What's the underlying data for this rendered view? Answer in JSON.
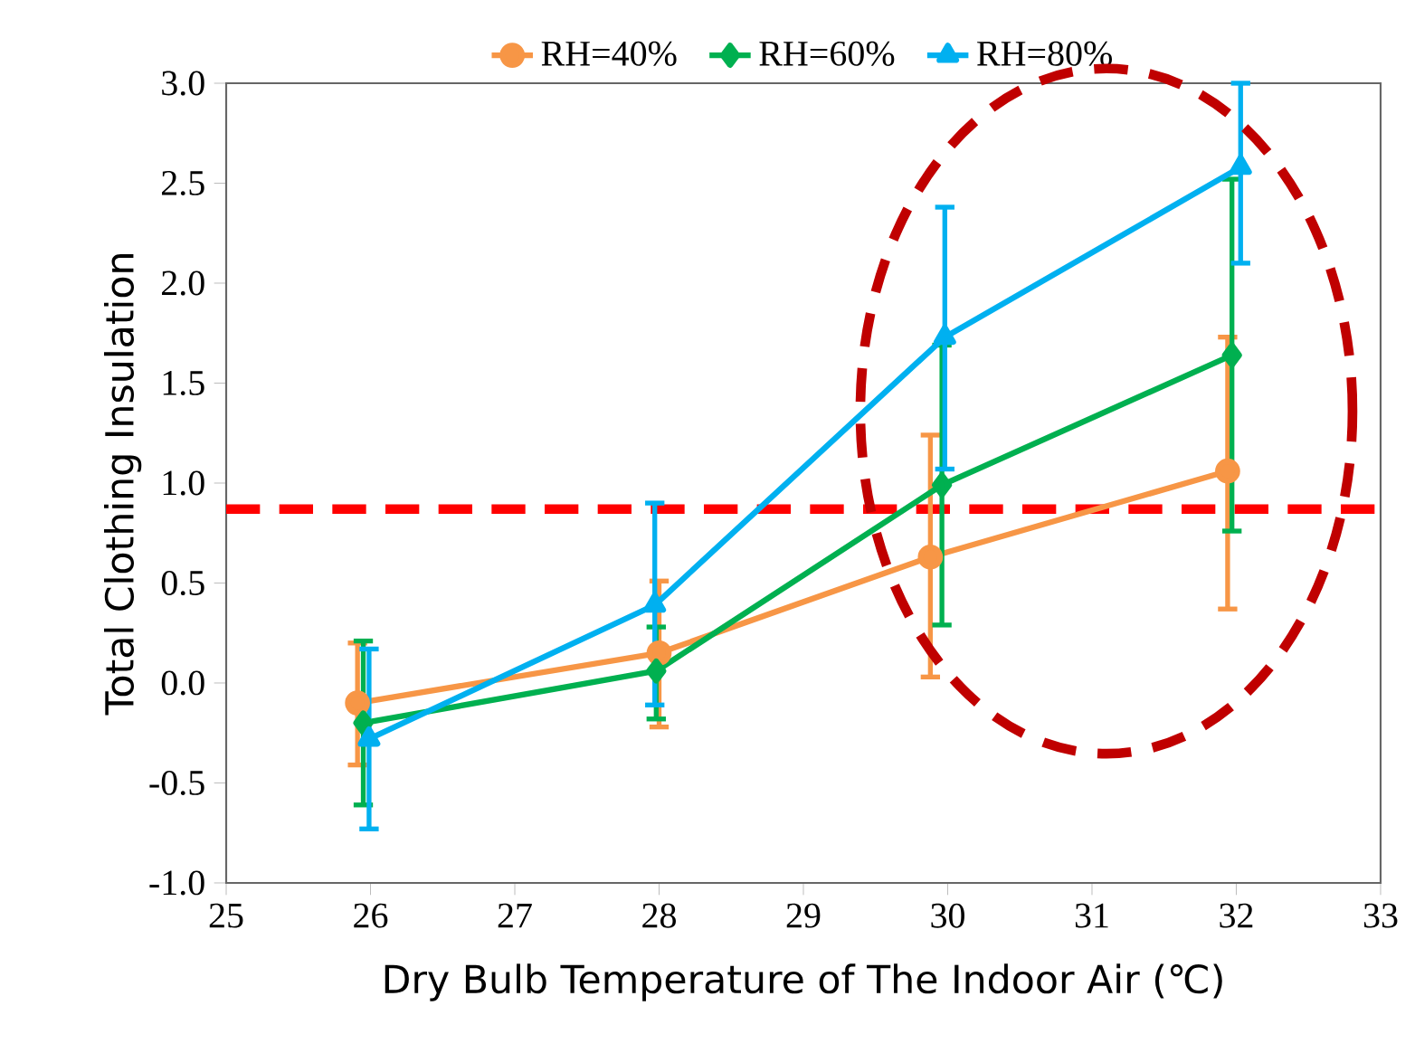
{
  "chart_data": {
    "type": "line",
    "xlabel": "Dry Bulb Temperature of The Indoor Air (℃)",
    "ylabel": "Total Clothing Insulation",
    "xlim": [
      25,
      33
    ],
    "xticks": [
      25,
      26,
      27,
      28,
      29,
      30,
      31,
      32,
      33
    ],
    "ylim": [
      -1.0,
      3.0
    ],
    "yticks": [
      {
        "value": -1.0,
        "label": "-1.0"
      },
      {
        "value": -0.5,
        "label": "-0.5"
      },
      {
        "value": 0,
        "label": "0.0"
      },
      {
        "value": 0.5,
        "label": "0.5"
      },
      {
        "value": 1.0,
        "label": "1.0"
      },
      {
        "value": 1.5,
        "label": "1.5"
      },
      {
        "value": 2.0,
        "label": "2.0"
      },
      {
        "value": 2.5,
        "label": "2.5"
      },
      {
        "value": 3.0,
        "label": "3.0"
      }
    ],
    "grid": false,
    "legend": "top",
    "line_style": "solid",
    "series": [
      {
        "name": "RH=40%",
        "color": "#f79646",
        "marker": "circle",
        "x": [
          25.91,
          28.0,
          29.88,
          31.94
        ],
        "values": [
          -0.1,
          0.15,
          0.63,
          1.06
        ],
        "errors": [
          [
            -0.41,
            0.2
          ],
          [
            -0.22,
            0.51
          ],
          [
            0.03,
            1.24
          ],
          [
            0.37,
            1.73
          ]
        ]
      },
      {
        "name": "RH=60%",
        "color": "#00b050",
        "marker": "diamond",
        "x": [
          25.95,
          27.98,
          29.96,
          31.97
        ],
        "values": [
          -0.2,
          0.06,
          0.99,
          1.64
        ],
        "errors": [
          [
            -0.61,
            0.21
          ],
          [
            -0.18,
            0.28
          ],
          [
            0.29,
            1.69
          ],
          [
            0.76,
            2.52
          ]
        ]
      },
      {
        "name": "RH=80%",
        "color": "#00b0f0",
        "marker": "triangle",
        "x": [
          25.99,
          27.97,
          29.98,
          32.03
        ],
        "values": [
          -0.28,
          0.39,
          1.73,
          2.58
        ],
        "errors": [
          [
            -0.73,
            0.17
          ],
          [
            -0.11,
            0.9
          ],
          [
            1.07,
            2.38
          ],
          [
            2.1,
            3.0
          ]
        ]
      }
    ],
    "ref_lines": [
      {
        "axis": "y",
        "value": 0.87,
        "color": "#ff0000",
        "line_style": "dashed"
      }
    ]
  }
}
